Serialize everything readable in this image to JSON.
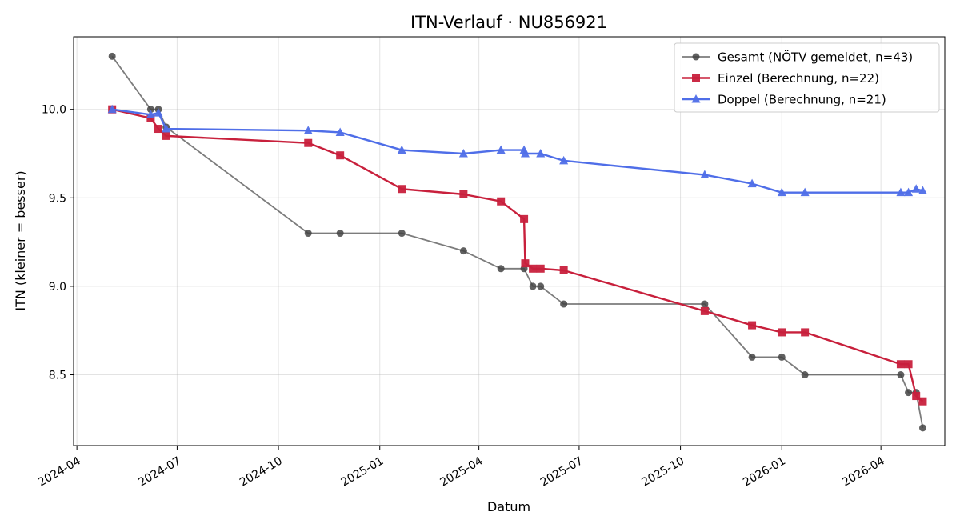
{
  "chart_data": {
    "type": "line",
    "title": "ITN-Verlauf · NU856921",
    "xlabel": "Datum",
    "ylabel": "ITN  (kleiner = besser)",
    "x_type": "date",
    "xlim": [
      "2024-03-29",
      "2026-05-29"
    ],
    "ylim": [
      8.1,
      10.41
    ],
    "x_ticks": [
      {
        "date": "2024-04-01",
        "label": "2024-04"
      },
      {
        "date": "2024-07-01",
        "label": "2024-07"
      },
      {
        "date": "2024-10-01",
        "label": "2024-10"
      },
      {
        "date": "2025-01-01",
        "label": "2025-01"
      },
      {
        "date": "2025-04-01",
        "label": "2025-04"
      },
      {
        "date": "2025-07-01",
        "label": "2025-07"
      },
      {
        "date": "2025-10-01",
        "label": "2025-10"
      },
      {
        "date": "2026-01-01",
        "label": "2026-01"
      },
      {
        "date": "2026-04-01",
        "label": "2026-04"
      }
    ],
    "y_ticks": [
      {
        "value": 8.5,
        "label": "8.5"
      },
      {
        "value": 9.0,
        "label": "9.0"
      },
      {
        "value": 9.5,
        "label": "9.5"
      },
      {
        "value": 10.0,
        "label": "10.0"
      }
    ],
    "grid": true,
    "legend_position": "top-right",
    "series": [
      {
        "name": "Gesamt (NÖTV gemeldet, n=43)",
        "color": "#444444",
        "marker": "circle",
        "points": [
          {
            "x": "2024-05-03",
            "y": 10.3
          },
          {
            "x": "2024-06-07",
            "y": 10.0
          },
          {
            "x": "2024-06-14",
            "y": 10.0
          },
          {
            "x": "2024-06-21",
            "y": 9.9
          },
          {
            "x": "2024-10-28",
            "y": 9.3
          },
          {
            "x": "2024-11-26",
            "y": 9.3
          },
          {
            "x": "2025-01-21",
            "y": 9.3
          },
          {
            "x": "2025-03-18",
            "y": 9.2
          },
          {
            "x": "2025-04-21",
            "y": 9.1
          },
          {
            "x": "2025-05-12",
            "y": 9.1
          },
          {
            "x": "2025-05-20",
            "y": 9.0
          },
          {
            "x": "2025-05-27",
            "y": 9.0
          },
          {
            "x": "2025-06-17",
            "y": 8.9
          },
          {
            "x": "2025-10-23",
            "y": 8.9
          },
          {
            "x": "2025-12-05",
            "y": 8.6
          },
          {
            "x": "2026-01-01",
            "y": 8.6
          },
          {
            "x": "2026-01-22",
            "y": 8.5
          },
          {
            "x": "2026-04-19",
            "y": 8.5
          },
          {
            "x": "2026-04-26",
            "y": 8.4
          },
          {
            "x": "2026-05-03",
            "y": 8.4
          },
          {
            "x": "2026-05-09",
            "y": 8.2
          }
        ]
      },
      {
        "name": "Einzel (Berechnung, n=22)",
        "color": "#c8203c",
        "marker": "square",
        "points": [
          {
            "x": "2024-05-03",
            "y": 10.0
          },
          {
            "x": "2024-06-07",
            "y": 9.95
          },
          {
            "x": "2024-06-14",
            "y": 9.89
          },
          {
            "x": "2024-06-21",
            "y": 9.85
          },
          {
            "x": "2024-10-28",
            "y": 9.81
          },
          {
            "x": "2024-11-26",
            "y": 9.74
          },
          {
            "x": "2025-01-21",
            "y": 9.55
          },
          {
            "x": "2025-03-18",
            "y": 9.52
          },
          {
            "x": "2025-04-21",
            "y": 9.48
          },
          {
            "x": "2025-05-12",
            "y": 9.38
          },
          {
            "x": "2025-05-13",
            "y": 9.13
          },
          {
            "x": "2025-05-20",
            "y": 9.1
          },
          {
            "x": "2025-05-27",
            "y": 9.1
          },
          {
            "x": "2025-06-17",
            "y": 9.09
          },
          {
            "x": "2025-10-23",
            "y": 8.86
          },
          {
            "x": "2025-12-05",
            "y": 8.78
          },
          {
            "x": "2026-01-01",
            "y": 8.74
          },
          {
            "x": "2026-01-22",
            "y": 8.74
          },
          {
            "x": "2026-04-19",
            "y": 8.56
          },
          {
            "x": "2026-04-26",
            "y": 8.56
          },
          {
            "x": "2026-05-03",
            "y": 8.38
          },
          {
            "x": "2026-05-09",
            "y": 8.35
          }
        ]
      },
      {
        "name": "Doppel (Berechnung, n=21)",
        "color": "#4f6ee8",
        "marker": "triangle",
        "points": [
          {
            "x": "2024-05-03",
            "y": 10.0
          },
          {
            "x": "2024-06-07",
            "y": 9.97
          },
          {
            "x": "2024-06-14",
            "y": 9.98
          },
          {
            "x": "2024-06-21",
            "y": 9.89
          },
          {
            "x": "2024-10-28",
            "y": 9.88
          },
          {
            "x": "2024-11-26",
            "y": 9.87
          },
          {
            "x": "2025-01-21",
            "y": 9.77
          },
          {
            "x": "2025-03-18",
            "y": 9.75
          },
          {
            "x": "2025-04-21",
            "y": 9.77
          },
          {
            "x": "2025-05-12",
            "y": 9.77
          },
          {
            "x": "2025-05-13",
            "y": 9.75
          },
          {
            "x": "2025-05-27",
            "y": 9.75
          },
          {
            "x": "2025-06-17",
            "y": 9.71
          },
          {
            "x": "2025-10-23",
            "y": 9.63
          },
          {
            "x": "2025-12-05",
            "y": 9.58
          },
          {
            "x": "2026-01-01",
            "y": 9.53
          },
          {
            "x": "2026-01-22",
            "y": 9.53
          },
          {
            "x": "2026-04-19",
            "y": 9.53
          },
          {
            "x": "2026-04-26",
            "y": 9.53
          },
          {
            "x": "2026-05-03",
            "y": 9.55
          },
          {
            "x": "2026-05-09",
            "y": 9.54
          }
        ]
      }
    ]
  }
}
